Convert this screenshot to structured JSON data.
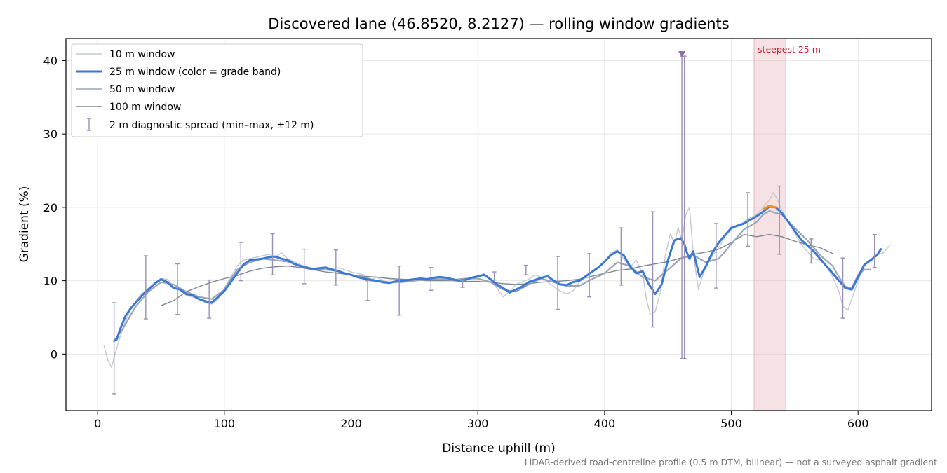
{
  "chart_data": {
    "type": "line",
    "title": "Discovered lane (46.8520, 8.2127) — rolling window gradients",
    "xlabel": "Distance uphill (m)",
    "ylabel": "Gradient (%)",
    "xlim": [
      -25,
      658
    ],
    "ylim": [
      -7.7,
      43
    ],
    "x_ticks": [
      0,
      100,
      200,
      300,
      400,
      500,
      600
    ],
    "y_ticks": [
      0,
      10,
      20,
      30,
      40
    ],
    "grid": true,
    "legend_position": "top-left",
    "footnote": "LiDAR-derived road-centreline profile (0.5 m DTM, bilinear) — not a surveyed asphalt gradient",
    "colors": {
      "w10": "#c5c9d3",
      "w25": "#3a78d4",
      "w25_steep": "#e8961e",
      "w50": "#9aa6b8",
      "w100": "#7d8592",
      "errorbar": "#9a8fb8",
      "marker": "#8a6fa8",
      "highlight": "#e9b5bb",
      "annotation": "#c8202e"
    },
    "highlight": {
      "x_range": [
        518,
        543
      ],
      "label": "steepest 25 m"
    },
    "series": [
      {
        "name": "10 m window",
        "x": [
          5,
          8,
          11,
          14,
          18,
          22,
          26,
          30,
          35,
          40,
          45,
          50,
          55,
          60,
          65,
          70,
          75,
          80,
          85,
          90,
          95,
          100,
          105,
          110,
          115,
          120,
          125,
          130,
          135,
          140,
          145,
          150,
          160,
          170,
          180,
          190,
          200,
          210,
          215,
          220,
          230,
          240,
          250,
          260,
          270,
          280,
          290,
          300,
          305,
          310,
          315,
          320,
          325,
          330,
          340,
          345,
          350,
          360,
          365,
          370,
          375,
          380,
          385,
          390,
          400,
          405,
          410,
          415,
          420,
          425,
          430,
          433,
          436,
          440,
          444,
          448,
          452,
          455,
          458,
          461,
          464,
          467,
          470,
          474,
          478,
          482,
          486,
          490,
          495,
          500,
          505,
          510,
          515,
          520,
          525,
          530,
          533,
          536,
          540,
          545,
          550,
          555,
          560,
          565,
          570,
          575,
          580,
          585,
          588,
          592,
          596,
          600,
          605,
          610,
          615,
          620,
          625
        ],
        "y": [
          1.2,
          -0.8,
          -1.8,
          0.2,
          2.5,
          4.5,
          6.0,
          7.2,
          8.3,
          9.0,
          9.6,
          10.3,
          10.2,
          9.2,
          8.8,
          8.0,
          7.8,
          7.5,
          7.0,
          6.8,
          7.5,
          9.0,
          10.5,
          12.0,
          12.8,
          13.0,
          13.2,
          13.4,
          13.6,
          13.2,
          13.8,
          13.0,
          12.2,
          11.6,
          11.5,
          11.8,
          11.2,
          10.8,
          10.0,
          10.5,
          9.6,
          10.2,
          10.0,
          10.3,
          10.4,
          10.0,
          10.2,
          10.5,
          11.0,
          10.0,
          9.0,
          7.8,
          8.5,
          9.5,
          10.2,
          10.8,
          10.5,
          9.2,
          8.6,
          8.2,
          8.6,
          9.8,
          10.5,
          11.3,
          12.5,
          13.8,
          14.2,
          13.0,
          11.8,
          12.8,
          11.0,
          7.5,
          5.5,
          5.8,
          8.5,
          13.5,
          16.5,
          15.0,
          17.2,
          15.5,
          19.0,
          20.0,
          13.8,
          8.8,
          11.0,
          12.5,
          13.6,
          14.5,
          16.0,
          17.0,
          17.5,
          18.0,
          18.6,
          19.0,
          20.0,
          21.0,
          22.0,
          21.2,
          19.5,
          18.0,
          16.5,
          15.0,
          14.0,
          13.0,
          12.8,
          12.0,
          10.5,
          8.5,
          6.5,
          6.0,
          8.0,
          10.0,
          12.0,
          13.0,
          13.5,
          13.8,
          14.8
        ]
      },
      {
        "name": "25 m window (color = grade band)",
        "x": [
          13,
          15,
          18,
          22,
          26,
          30,
          35,
          40,
          45,
          50,
          55,
          60,
          65,
          70,
          75,
          80,
          85,
          90,
          95,
          100,
          105,
          110,
          115,
          120,
          125,
          130,
          135,
          140,
          145,
          150,
          155,
          160,
          165,
          170,
          175,
          180,
          185,
          190,
          195,
          200,
          205,
          210,
          215,
          220,
          225,
          230,
          235,
          240,
          245,
          250,
          255,
          260,
          265,
          270,
          275,
          280,
          285,
          290,
          295,
          300,
          305,
          310,
          315,
          320,
          325,
          330,
          335,
          340,
          345,
          350,
          355,
          360,
          365,
          370,
          375,
          380,
          385,
          390,
          395,
          400,
          405,
          410,
          415,
          420,
          425,
          430,
          435,
          440,
          445,
          450,
          455,
          460,
          463,
          465,
          467,
          470,
          475,
          480,
          485,
          490,
          495,
          500,
          505,
          510,
          515,
          520,
          525,
          530,
          535,
          540,
          545,
          550,
          555,
          560,
          565,
          570,
          575,
          580,
          585,
          590,
          595,
          600,
          605,
          610,
          615,
          618
        ],
        "y": [
          1.8,
          2.0,
          3.5,
          5.2,
          6.2,
          7.0,
          8.0,
          8.8,
          9.6,
          10.2,
          9.8,
          9.0,
          8.8,
          8.2,
          8.0,
          7.5,
          7.2,
          7.0,
          7.8,
          8.6,
          9.8,
          11.0,
          12.2,
          12.8,
          12.9,
          13.0,
          13.2,
          13.3,
          13.0,
          12.8,
          12.3,
          12.0,
          11.8,
          11.6,
          11.7,
          11.8,
          11.5,
          11.3,
          11.0,
          10.8,
          10.5,
          10.3,
          10.1,
          10.0,
          9.8,
          9.7,
          9.9,
          10.0,
          10.1,
          10.2,
          10.3,
          10.2,
          10.4,
          10.5,
          10.4,
          10.2,
          10.0,
          10.1,
          10.4,
          10.6,
          10.8,
          10.2,
          9.5,
          9.0,
          8.4,
          8.8,
          9.2,
          9.8,
          10.1,
          10.4,
          10.6,
          10.0,
          9.5,
          9.4,
          9.8,
          10.0,
          10.6,
          11.2,
          11.8,
          12.6,
          13.5,
          14.0,
          13.5,
          12.0,
          11.0,
          11.3,
          9.5,
          8.2,
          9.5,
          12.8,
          15.5,
          15.8,
          15.0,
          13.8,
          13.0,
          14.0,
          10.5,
          12.0,
          13.8,
          15.2,
          16.2,
          17.2,
          17.5,
          17.8,
          18.3,
          18.8,
          19.4,
          20.1,
          20.0,
          19.2,
          18.0,
          16.8,
          15.6,
          14.8,
          14.0,
          13.0,
          12.0,
          11.0,
          10.0,
          9.0,
          8.8,
          10.5,
          12.2,
          12.8,
          13.5,
          14.3
        ]
      },
      {
        "name": "50 m window",
        "x": [
          13,
          20,
          30,
          40,
          50,
          60,
          70,
          80,
          90,
          100,
          110,
          120,
          130,
          140,
          150,
          160,
          170,
          180,
          190,
          200,
          210,
          220,
          230,
          240,
          250,
          260,
          270,
          280,
          290,
          300,
          310,
          320,
          330,
          340,
          350,
          360,
          370,
          380,
          390,
          400,
          410,
          420,
          430,
          440,
          450,
          460,
          470,
          480,
          490,
          500,
          510,
          520,
          525,
          530,
          540,
          550,
          560,
          570,
          580,
          585,
          590,
          595,
          600,
          605,
          610
        ],
        "y": [
          1.8,
          3.5,
          6.5,
          8.5,
          9.8,
          9.5,
          8.5,
          7.8,
          7.5,
          8.8,
          11.5,
          12.5,
          13.0,
          12.8,
          12.6,
          12.0,
          11.6,
          11.5,
          11.3,
          10.8,
          10.5,
          10.0,
          9.8,
          9.8,
          10.0,
          10.2,
          10.2,
          10.1,
          10.3,
          10.3,
          9.8,
          8.8,
          8.5,
          9.5,
          10.3,
          9.8,
          9.3,
          9.3,
          10.2,
          11.0,
          12.5,
          12.0,
          10.5,
          10.0,
          11.5,
          13.0,
          13.5,
          12.5,
          13.0,
          15.0,
          17.0,
          18.0,
          19.0,
          19.5,
          19.0,
          17.2,
          15.5,
          13.5,
          12.0,
          10.5,
          9.2,
          9.0,
          10.8,
          11.5,
          11.5
        ]
      },
      {
        "name": "100 m window",
        "x": [
          50,
          60,
          70,
          80,
          90,
          100,
          110,
          120,
          130,
          140,
          150,
          160,
          170,
          180,
          190,
          200,
          210,
          220,
          230,
          240,
          250,
          260,
          270,
          280,
          290,
          300,
          310,
          320,
          330,
          340,
          350,
          360,
          370,
          380,
          390,
          400,
          410,
          420,
          430,
          440,
          450,
          460,
          470,
          480,
          490,
          500,
          510,
          520,
          530,
          540,
          550,
          560,
          570,
          580
        ],
        "y": [
          6.6,
          7.3,
          8.5,
          9.2,
          9.8,
          10.3,
          10.7,
          11.3,
          11.7,
          11.9,
          12.0,
          11.8,
          11.5,
          11.2,
          11.0,
          10.8,
          10.6,
          10.5,
          10.3,
          10.2,
          10.1,
          10.0,
          10.0,
          10.0,
          9.9,
          9.9,
          9.8,
          9.6,
          9.5,
          9.6,
          9.8,
          9.9,
          10.0,
          10.2,
          10.6,
          11.0,
          11.4,
          11.6,
          12.0,
          12.3,
          12.6,
          13.1,
          13.6,
          13.9,
          14.3,
          15.2,
          16.3,
          16.0,
          16.3,
          16.0,
          15.4,
          14.9,
          14.5,
          13.7
        ]
      }
    ],
    "steepest_segment": {
      "x": [
        526,
        530,
        535
      ],
      "y": [
        19.8,
        20.2,
        20.0
      ]
    },
    "error_bars": {
      "name": "2 m diagnostic spread (min–max, ±12 m)",
      "x": [
        13,
        38,
        63,
        88,
        113,
        138,
        163,
        188,
        213,
        238,
        263,
        288,
        313,
        338,
        363,
        388,
        413,
        438,
        461,
        463,
        488,
        513,
        538,
        563,
        588,
        613
      ],
      "low": [
        -5.4,
        4.8,
        5.4,
        4.9,
        10.0,
        10.8,
        9.6,
        9.4,
        7.3,
        5.3,
        8.7,
        9.1,
        10.1,
        10.8,
        6.1,
        7.8,
        9.4,
        3.7,
        -0.6,
        -0.6,
        9.0,
        14.7,
        13.6,
        12.4,
        4.9,
        11.8
      ],
      "high": [
        7.0,
        13.4,
        12.3,
        10.1,
        15.2,
        16.4,
        14.3,
        14.2,
        10.0,
        12.0,
        11.8,
        10.0,
        11.2,
        12.1,
        13.3,
        13.7,
        17.2,
        19.4,
        40.6,
        40.6,
        17.8,
        22.0,
        22.9,
        15.7,
        13.1,
        16.3
      ]
    },
    "outlier_marker": {
      "x": 461,
      "y": 40.8
    }
  }
}
